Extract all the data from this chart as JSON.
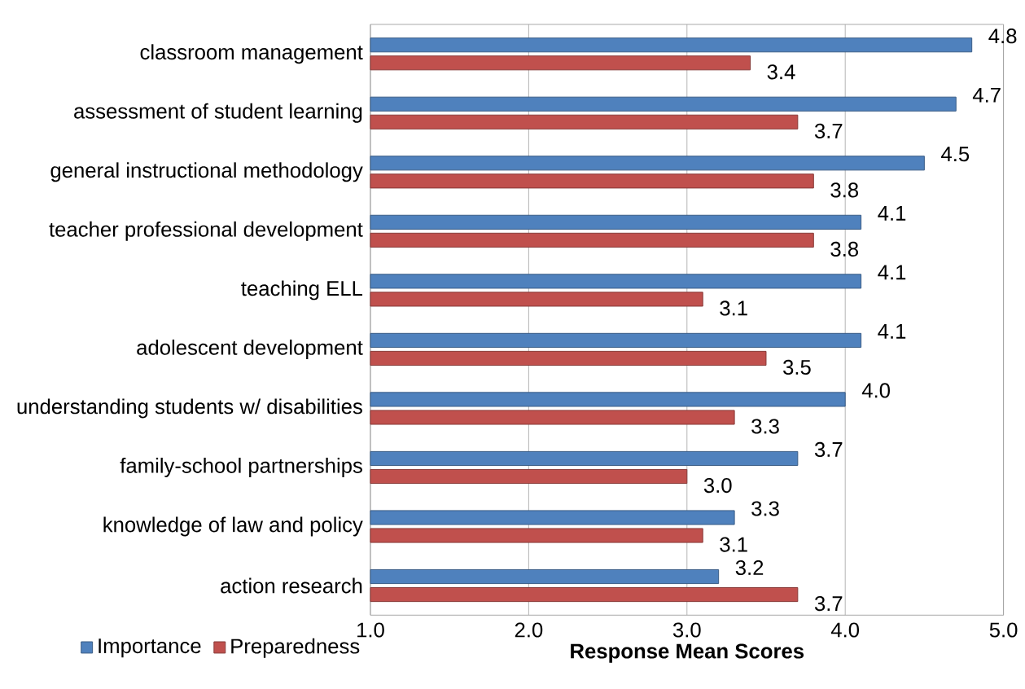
{
  "chart_data": {
    "type": "bar",
    "orientation": "horizontal",
    "categories": [
      "classroom management",
      "assessment of student learning",
      "general instructional methodology",
      "teacher professional development",
      "teaching ELL",
      "adolescent development",
      "understanding students w/ disabilities",
      "family-school partnerships",
      "knowledge of law and policy",
      "action research"
    ],
    "series": [
      {
        "name": "Importance",
        "color": "#4f81bd",
        "values": [
          4.8,
          4.7,
          4.5,
          4.1,
          4.1,
          4.1,
          4.0,
          3.7,
          3.3,
          3.2
        ],
        "value_labels": [
          "4.8",
          "4.7",
          "4.5",
          "4.1",
          "4.1",
          "4.1",
          "4.0",
          "3.7",
          "3.3",
          "3.2"
        ]
      },
      {
        "name": "Preparedness",
        "color": "#c0504d",
        "values": [
          3.4,
          3.7,
          3.8,
          3.8,
          3.1,
          3.5,
          3.3,
          3.0,
          3.1,
          3.7
        ],
        "value_labels": [
          "3.4",
          "3.7",
          "3.8",
          "3.8",
          "3.1",
          "3.5",
          "3.3",
          "3.0",
          "3.1",
          "3.7"
        ]
      }
    ],
    "xlabel": "Response Mean Scores",
    "xlim": [
      1,
      5
    ],
    "xticks": [
      {
        "value": 1,
        "label": "1.0"
      },
      {
        "value": 2,
        "label": "2.0"
      },
      {
        "value": 3,
        "label": "3.0"
      },
      {
        "value": 4,
        "label": "4.0"
      },
      {
        "value": 5,
        "label": "5.0"
      }
    ],
    "grid": "x",
    "legend": "bottom left"
  }
}
